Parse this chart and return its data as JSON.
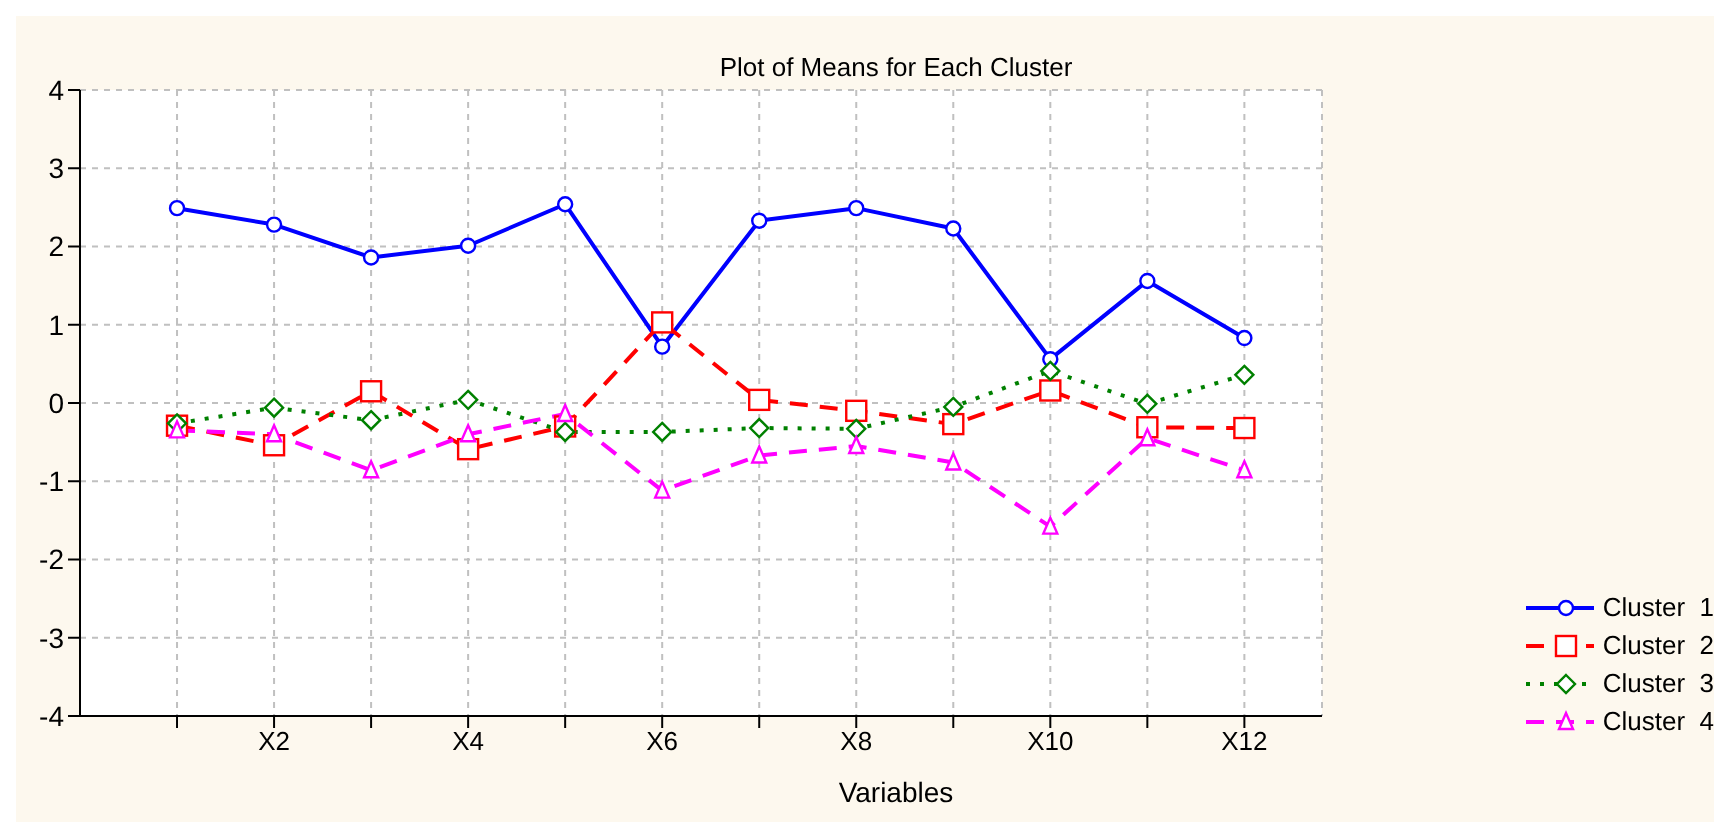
{
  "chart_data": {
    "type": "line",
    "title": "Plot of Means for Each Cluster",
    "xlabel": "Variables",
    "categories": [
      null,
      "X2",
      null,
      "X4",
      null,
      "X6",
      null,
      "X8",
      null,
      "X10",
      null,
      "X12"
    ],
    "series": [
      {
        "name": "Cluster  1",
        "color": "#0000ff",
        "marker": "circle",
        "line_style": "solid",
        "values": [
          2.49,
          2.28,
          1.86,
          2.01,
          2.54,
          0.72,
          2.33,
          2.49,
          2.23,
          0.56,
          1.56,
          0.83
        ]
      },
      {
        "name": "Cluster  2",
        "color": "#ff0000",
        "marker": "square",
        "line_style": "dashed",
        "values": [
          -0.29,
          -0.54,
          0.15,
          -0.59,
          -0.3,
          1.03,
          0.04,
          -0.1,
          -0.27,
          0.16,
          -0.31,
          -0.32
        ]
      },
      {
        "name": "Cluster  3",
        "color": "#008000",
        "marker": "diamond",
        "line_style": "dotted",
        "values": [
          -0.26,
          -0.06,
          -0.22,
          0.04,
          -0.37,
          -0.37,
          -0.32,
          -0.33,
          -0.05,
          0.41,
          -0.01,
          0.36
        ]
      },
      {
        "name": "Cluster  4",
        "color": "#ff00ff",
        "marker": "triangle",
        "line_style": "dashed",
        "values": [
          -0.35,
          -0.4,
          -0.86,
          -0.4,
          -0.14,
          -1.12,
          -0.67,
          -0.55,
          -0.76,
          -1.58,
          -0.45,
          -0.86
        ]
      }
    ],
    "ylim": [
      -4,
      4
    ],
    "yticks": [
      -4,
      -3,
      -2,
      -1,
      0,
      1,
      2,
      3,
      4
    ],
    "grid": true,
    "legend": "bottom right"
  }
}
